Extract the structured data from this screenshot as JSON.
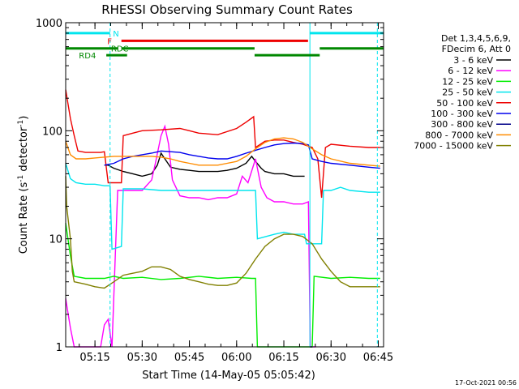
{
  "chart_data": {
    "type": "line",
    "title": "RHESSI Observing Summary Count Rates",
    "xlabel": "Start Time (14-May-05 05:05:42)",
    "ylabel": "Count Rate (s⁻¹ detector⁻¹)",
    "ylabel_parts": {
      "base": "Count Rate (s",
      "exp1": "-1",
      "mid": " detector",
      "exp2": "-1",
      "end": ")"
    },
    "yscale": "log",
    "ylim": [
      1,
      1000
    ],
    "xlim": [
      5.095,
      6.778
    ],
    "x_ticks": [
      {
        "t": 5.25,
        "label": "05:15"
      },
      {
        "t": 5.5,
        "label": "05:30"
      },
      {
        "t": 5.75,
        "label": "05:45"
      },
      {
        "t": 6.0,
        "label": "06:00"
      },
      {
        "t": 6.25,
        "label": "06:15"
      },
      {
        "t": 6.5,
        "label": "06:30"
      },
      {
        "t": 6.75,
        "label": "06:45"
      }
    ],
    "y_ticks": [
      {
        "v": 1,
        "label": "1"
      },
      {
        "v": 10,
        "label": "10"
      },
      {
        "v": 100,
        "label": "100"
      },
      {
        "v": 1000,
        "label": "1000"
      }
    ],
    "legend_header": [
      "Det 1,3,4,5,6,9,",
      "FDecim 6, Att 0"
    ],
    "legend_placement": "right",
    "series": [
      {
        "name": "3 - 6 keV",
        "color": "#000000",
        "points": [
          [
            5.3,
            48
          ],
          [
            5.32,
            48
          ],
          [
            5.35,
            45
          ],
          [
            5.4,
            42
          ],
          [
            5.45,
            40
          ],
          [
            5.5,
            38
          ],
          [
            5.55,
            40
          ],
          [
            5.58,
            48
          ],
          [
            5.6,
            62
          ],
          [
            5.62,
            55
          ],
          [
            5.65,
            46
          ],
          [
            5.7,
            44
          ],
          [
            5.75,
            43
          ],
          [
            5.8,
            42
          ],
          [
            5.85,
            42
          ],
          [
            5.9,
            42
          ],
          [
            5.95,
            43
          ],
          [
            6.0,
            45
          ],
          [
            6.05,
            50
          ],
          [
            6.08,
            58
          ],
          [
            6.1,
            52
          ],
          [
            6.13,
            45
          ],
          [
            6.15,
            42
          ],
          [
            6.2,
            40
          ],
          [
            6.25,
            40
          ],
          [
            6.3,
            38
          ],
          [
            6.36,
            38
          ]
        ]
      },
      {
        "name": "6 - 12 keV",
        "color": "#ff00ff",
        "points": [
          [
            5.095,
            2.8
          ],
          [
            5.12,
            1.5
          ],
          [
            5.14,
            1.0
          ],
          [
            5.28,
            1.0
          ],
          [
            5.3,
            1.6
          ],
          [
            5.32,
            1.8
          ],
          [
            5.34,
            1.0
          ],
          [
            5.37,
            28
          ],
          [
            5.45,
            28
          ],
          [
            5.5,
            28
          ],
          [
            5.55,
            35
          ],
          [
            5.57,
            50
          ],
          [
            5.6,
            90
          ],
          [
            5.62,
            110
          ],
          [
            5.64,
            75
          ],
          [
            5.66,
            35
          ],
          [
            5.7,
            25
          ],
          [
            5.75,
            24
          ],
          [
            5.8,
            24
          ],
          [
            5.85,
            23
          ],
          [
            5.9,
            24
          ],
          [
            5.95,
            24
          ],
          [
            6.0,
            26
          ],
          [
            6.03,
            38
          ],
          [
            6.06,
            33
          ],
          [
            6.1,
            55
          ],
          [
            6.13,
            30
          ],
          [
            6.16,
            24
          ],
          [
            6.2,
            22
          ],
          [
            6.25,
            22
          ],
          [
            6.3,
            21
          ],
          [
            6.35,
            21
          ],
          [
            6.38,
            22
          ],
          [
            6.39,
            1.0
          ],
          [
            6.42,
            1.0
          ]
        ]
      },
      {
        "name": "12 - 25 keV",
        "color": "#00ee00",
        "points": [
          [
            5.095,
            14
          ],
          [
            5.12,
            7
          ],
          [
            5.14,
            4.5
          ],
          [
            5.2,
            4.3
          ],
          [
            5.3,
            4.3
          ],
          [
            5.35,
            4.5
          ],
          [
            5.4,
            4.3
          ],
          [
            5.5,
            4.4
          ],
          [
            5.6,
            4.2
          ],
          [
            5.7,
            4.3
          ],
          [
            5.8,
            4.5
          ],
          [
            5.9,
            4.3
          ],
          [
            6.0,
            4.4
          ],
          [
            6.08,
            4.3
          ],
          [
            6.1,
            4.3
          ],
          [
            6.11,
            1.0
          ],
          [
            6.4,
            1.0
          ],
          [
            6.41,
            4.5
          ],
          [
            6.5,
            4.3
          ],
          [
            6.6,
            4.4
          ],
          [
            6.7,
            4.3
          ],
          [
            6.76,
            4.3
          ]
        ]
      },
      {
        "name": "25 - 50 keV",
        "color": "#00e5ee",
        "points": [
          [
            5.095,
            50
          ],
          [
            5.12,
            36
          ],
          [
            5.15,
            33
          ],
          [
            5.2,
            32
          ],
          [
            5.25,
            32
          ],
          [
            5.3,
            31
          ],
          [
            5.33,
            31
          ],
          [
            5.34,
            8
          ],
          [
            5.39,
            8.5
          ],
          [
            5.4,
            29
          ],
          [
            5.45,
            29
          ],
          [
            5.5,
            29
          ],
          [
            5.6,
            28
          ],
          [
            5.7,
            28
          ],
          [
            5.8,
            28
          ],
          [
            5.9,
            28
          ],
          [
            6.0,
            28
          ],
          [
            6.08,
            28
          ],
          [
            6.1,
            28
          ],
          [
            6.11,
            10
          ],
          [
            6.2,
            11
          ],
          [
            6.25,
            11.5
          ],
          [
            6.3,
            11
          ],
          [
            6.36,
            11
          ],
          [
            6.37,
            9
          ],
          [
            6.4,
            9
          ],
          [
            6.45,
            9
          ],
          [
            6.46,
            28
          ],
          [
            6.5,
            28
          ],
          [
            6.55,
            30
          ],
          [
            6.6,
            28
          ],
          [
            6.7,
            27
          ],
          [
            6.76,
            27
          ]
        ]
      },
      {
        "name": "50 - 100 keV",
        "color": "#ee0000",
        "points": [
          [
            5.095,
            240
          ],
          [
            5.12,
            130
          ],
          [
            5.14,
            90
          ],
          [
            5.16,
            65
          ],
          [
            5.2,
            63
          ],
          [
            5.28,
            63
          ],
          [
            5.3,
            64
          ],
          [
            5.32,
            33
          ],
          [
            5.39,
            33
          ],
          [
            5.4,
            90
          ],
          [
            5.45,
            95
          ],
          [
            5.5,
            100
          ],
          [
            5.6,
            102
          ],
          [
            5.7,
            105
          ],
          [
            5.75,
            100
          ],
          [
            5.8,
            95
          ],
          [
            5.9,
            92
          ],
          [
            6.0,
            105
          ],
          [
            6.05,
            120
          ],
          [
            6.09,
            135
          ],
          [
            6.1,
            70
          ],
          [
            6.15,
            80
          ],
          [
            6.2,
            82
          ],
          [
            6.25,
            82
          ],
          [
            6.3,
            78
          ],
          [
            6.35,
            75
          ],
          [
            6.4,
            70
          ],
          [
            6.43,
            55
          ],
          [
            6.45,
            24
          ],
          [
            6.47,
            70
          ],
          [
            6.5,
            75
          ],
          [
            6.6,
            72
          ],
          [
            6.7,
            70
          ],
          [
            6.76,
            70
          ]
        ]
      },
      {
        "name": "100 - 300 keV",
        "color": "#0000ee",
        "points": [
          [
            5.3,
            48
          ],
          [
            5.35,
            50
          ],
          [
            5.4,
            55
          ],
          [
            5.45,
            58
          ],
          [
            5.5,
            60
          ],
          [
            5.55,
            62
          ],
          [
            5.6,
            65
          ],
          [
            5.65,
            64
          ],
          [
            5.7,
            63
          ],
          [
            5.75,
            60
          ],
          [
            5.8,
            58
          ],
          [
            5.85,
            56
          ],
          [
            5.9,
            55
          ],
          [
            5.95,
            55
          ],
          [
            6.0,
            58
          ],
          [
            6.05,
            62
          ],
          [
            6.1,
            66
          ],
          [
            6.15,
            70
          ],
          [
            6.2,
            74
          ],
          [
            6.25,
            76
          ],
          [
            6.3,
            77
          ],
          [
            6.35,
            76
          ],
          [
            6.38,
            74
          ],
          [
            6.4,
            55
          ],
          [
            6.45,
            52
          ],
          [
            6.5,
            50
          ],
          [
            6.6,
            48
          ],
          [
            6.7,
            46
          ],
          [
            6.76,
            45
          ]
        ]
      },
      {
        "name": "300 - 800 keV",
        "color": "#000088",
        "points": [
          [
            6.39,
            1.0
          ],
          [
            6.4,
            1.0
          ]
        ]
      },
      {
        "name": "800 - 7000 keV",
        "color": "#ff8c00",
        "points": [
          [
            5.095,
            80
          ],
          [
            5.12,
            60
          ],
          [
            5.15,
            55
          ],
          [
            5.2,
            55
          ],
          [
            5.25,
            56
          ],
          [
            5.3,
            57
          ],
          [
            5.35,
            58
          ],
          [
            5.4,
            58
          ],
          [
            5.45,
            58
          ],
          [
            5.5,
            58
          ],
          [
            5.55,
            58
          ],
          [
            5.6,
            57
          ],
          [
            5.65,
            55
          ],
          [
            5.7,
            52
          ],
          [
            5.75,
            50
          ],
          [
            5.8,
            48
          ],
          [
            5.85,
            48
          ],
          [
            5.9,
            48
          ],
          [
            5.95,
            50
          ],
          [
            6.0,
            52
          ],
          [
            6.05,
            58
          ],
          [
            6.1,
            68
          ],
          [
            6.15,
            78
          ],
          [
            6.2,
            84
          ],
          [
            6.25,
            86
          ],
          [
            6.3,
            84
          ],
          [
            6.35,
            78
          ],
          [
            6.4,
            68
          ],
          [
            6.45,
            60
          ],
          [
            6.5,
            55
          ],
          [
            6.6,
            50
          ],
          [
            6.7,
            48
          ],
          [
            6.76,
            47
          ]
        ]
      },
      {
        "name": "7000 - 15000 keV",
        "color": "#808000",
        "points": [
          [
            5.095,
            38
          ],
          [
            5.1,
            20
          ],
          [
            5.12,
            10
          ],
          [
            5.13,
            5
          ],
          [
            5.14,
            4
          ],
          [
            5.2,
            3.8
          ],
          [
            5.25,
            3.6
          ],
          [
            5.3,
            3.5
          ],
          [
            5.35,
            4
          ],
          [
            5.4,
            4.6
          ],
          [
            5.45,
            4.8
          ],
          [
            5.5,
            5
          ],
          [
            5.55,
            5.5
          ],
          [
            5.6,
            5.5
          ],
          [
            5.65,
            5.2
          ],
          [
            5.7,
            4.5
          ],
          [
            5.75,
            4.2
          ],
          [
            5.8,
            4.0
          ],
          [
            5.85,
            3.8
          ],
          [
            5.9,
            3.7
          ],
          [
            5.95,
            3.7
          ],
          [
            6.0,
            3.9
          ],
          [
            6.05,
            4.8
          ],
          [
            6.1,
            6.5
          ],
          [
            6.15,
            8.5
          ],
          [
            6.2,
            10
          ],
          [
            6.25,
            11
          ],
          [
            6.3,
            11
          ],
          [
            6.35,
            10.5
          ],
          [
            6.4,
            9
          ],
          [
            6.45,
            6.5
          ],
          [
            6.5,
            5
          ],
          [
            6.55,
            4
          ],
          [
            6.6,
            3.6
          ],
          [
            6.7,
            3.6
          ],
          [
            6.76,
            3.6
          ]
        ]
      }
    ],
    "vertical_lines": [
      {
        "t": 5.33,
        "color": "#00e5ee",
        "style": "dashed"
      },
      {
        "t": 6.388,
        "color": "#00e5ee",
        "style": "solid"
      },
      {
        "t": 6.745,
        "color": "#00e5ee",
        "style": "dashed"
      }
    ],
    "flag_bars": [
      {
        "name": "N",
        "color": "#00e5ee",
        "y": 800,
        "segments": [
          [
            5.095,
            5.33
          ],
          [
            6.388,
            6.778
          ]
        ],
        "label_t": 5.345
      },
      {
        "name": "F",
        "color": "#ee0000",
        "y": 680,
        "segments": [
          [
            5.39,
            6.378
          ]
        ],
        "label_t": 5.315
      },
      {
        "name": "RDC",
        "color": "#008800",
        "y": 578,
        "segments": [
          [
            5.095,
            5.37
          ],
          [
            5.39,
            6.095
          ],
          [
            6.44,
            6.778
          ]
        ],
        "label_t": 5.335
      },
      {
        "name": "RD4",
        "color": "#008800",
        "y": 500,
        "segments": [
          [
            5.31,
            5.42
          ],
          [
            6.095,
            6.44
          ]
        ],
        "label_t": 5.165
      }
    ]
  },
  "timestamp": "17-Oct-2021 00:56"
}
